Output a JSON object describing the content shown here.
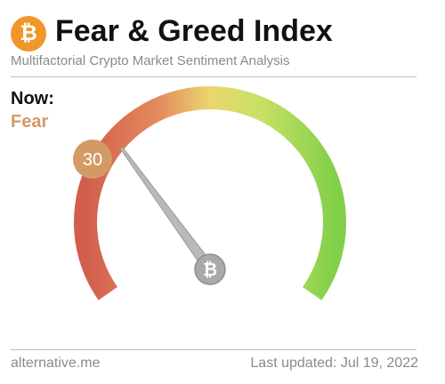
{
  "header": {
    "logo_icon": "bitcoin-icon",
    "logo_glyph": "₿",
    "title": "Fear & Greed Index",
    "subtitle": "Multifactorial Crypto Market Sentiment Analysis"
  },
  "status": {
    "now_label": "Now:",
    "classification": "Fear",
    "value": 30,
    "value_display": "30"
  },
  "gauge": {
    "min": 0,
    "max": 100,
    "hub_icon": "bitcoin-icon",
    "hub_glyph": "₿",
    "colors": {
      "extreme_fear": "#d15e4c",
      "fear": "#e58c5d",
      "neutral": "#ead76e",
      "greed": "#c7e164",
      "extreme_greed": "#82cf4a",
      "value_badge": "#d49a66"
    }
  },
  "footer": {
    "source": "alternative.me",
    "updated": "Last updated: Jul 19, 2022"
  }
}
